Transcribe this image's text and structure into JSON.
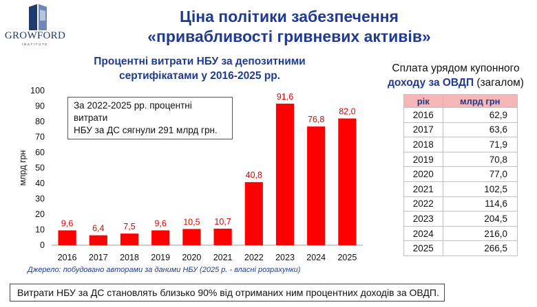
{
  "logo": {
    "name": "GROWFORD",
    "sub": "INSTITUTE"
  },
  "title": {
    "line1": "Ціна політики забезпечення",
    "line2": "«привабливості гривневих активів»"
  },
  "chart_title": {
    "line1": "Процентні витрати НБУ за депозитними",
    "line2": "сертифікатами у 2016-2025 рр."
  },
  "annotation": {
    "line1": "За 2022-2025 рр. процентні витрати",
    "line2": "НБУ за ДС сягнули 291 млрд грн."
  },
  "source": "Джерело: побудовано авторами за даними НБУ (2025 р. - власні розрахунки)",
  "table_title": {
    "line1": "Сплата урядом купонного",
    "bold2": "доходу за ОВДП",
    "rest2": " (загалом)"
  },
  "table": {
    "headers": [
      "рік",
      "млрд грн"
    ],
    "rows": [
      [
        "2016",
        "62,9"
      ],
      [
        "2017",
        "63,6"
      ],
      [
        "2018",
        "71,9"
      ],
      [
        "2019",
        "70,8"
      ],
      [
        "2020",
        "77,0"
      ],
      [
        "2021",
        "102,5"
      ],
      [
        "2022",
        "114,6"
      ],
      [
        "2023",
        "204,5"
      ],
      [
        "2024",
        "216,0"
      ],
      [
        "2025",
        "266,5"
      ]
    ]
  },
  "footer": "Витрати НБУ за ДС становлять близько 90% від отриманих ним процентних доходів за ОВДП.",
  "colors": {
    "bar": "#ff0000",
    "bar_label": "#e00000",
    "title": "#1f3a93",
    "table_header": "#f4b6b6"
  },
  "chart_data": {
    "type": "bar",
    "title": "Процентні витрати НБУ за депозитними сертифікатами у 2016-2025 рр.",
    "xlabel": "",
    "ylabel": "млрд грн",
    "ylim": [
      0,
      100
    ],
    "yticks": [
      0,
      10,
      20,
      30,
      40,
      50,
      60,
      70,
      80,
      90,
      100
    ],
    "categories": [
      "2016",
      "2017",
      "2018",
      "2019",
      "2020",
      "2021",
      "2022",
      "2023",
      "2024",
      "2025"
    ],
    "values": [
      9.6,
      6.4,
      7.5,
      9.6,
      10.5,
      10.7,
      40.8,
      91.6,
      76.8,
      82.0
    ],
    "labels": [
      "9,6",
      "6,4",
      "7,5",
      "9,6",
      "10,5",
      "10,7",
      "40,8",
      "91,6",
      "76,8",
      "82,0"
    ],
    "grid": false
  }
}
